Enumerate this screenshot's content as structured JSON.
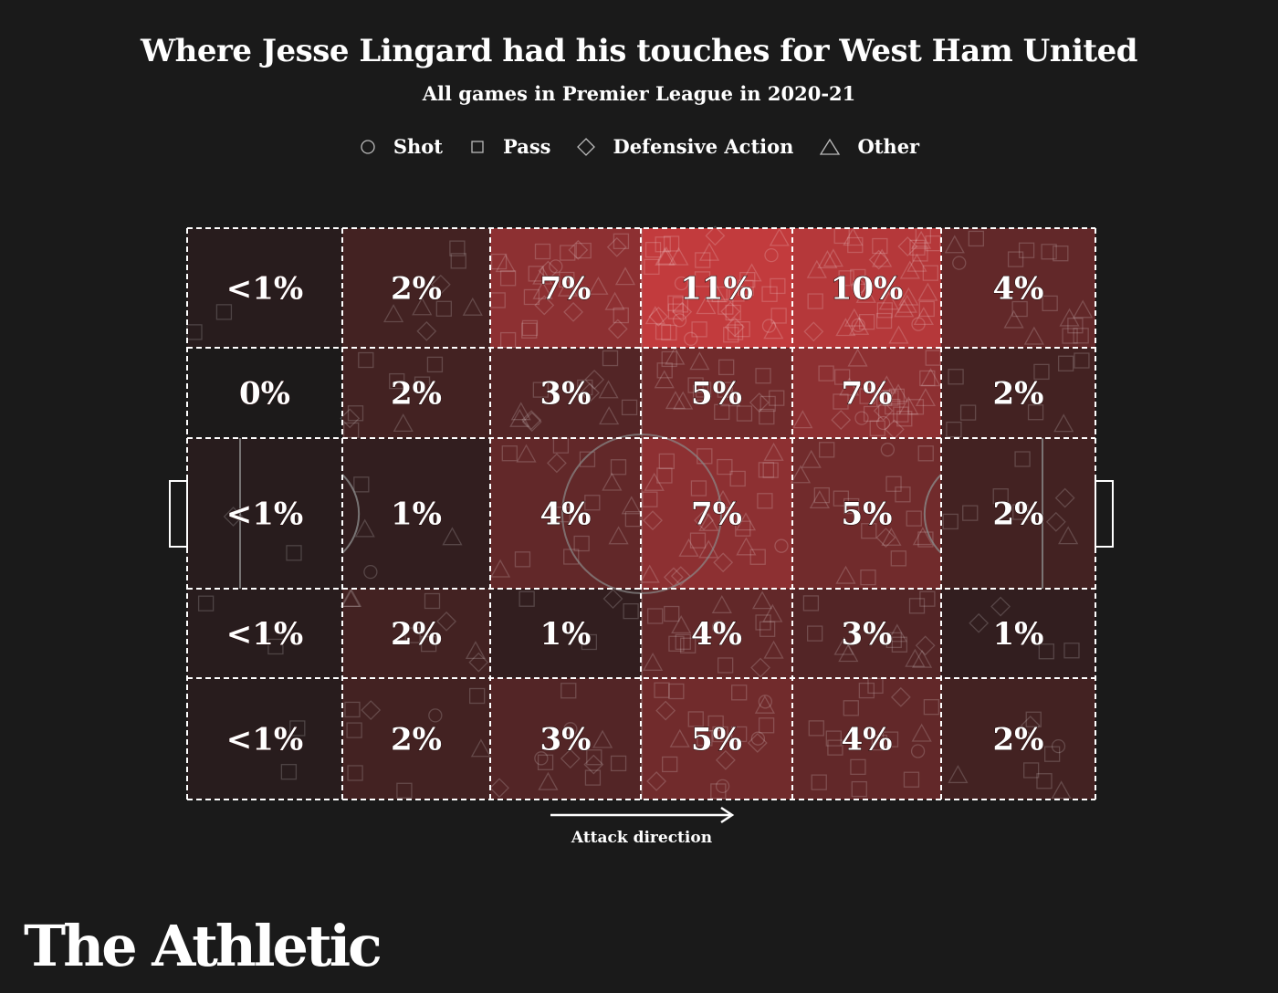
{
  "title": "Where Jesse Lingard had his touches for West Ham United",
  "subtitle": "All games in Premier League in 2020-21",
  "legend": [
    {
      "label": "Shot",
      "icon": "circle-icon"
    },
    {
      "label": "Pass",
      "icon": "square-icon"
    },
    {
      "label": "Defensive Action",
      "icon": "diamond-icon"
    },
    {
      "label": "Other",
      "icon": "triangle-icon"
    }
  ],
  "attack_direction": "Attack direction",
  "brand": "The Athletic",
  "colors": {
    "background": "#1a1a1a",
    "low": "#1c1a1a",
    "high": "#c23b3d"
  },
  "chart_data": {
    "type": "heatmap",
    "title": "Where Jesse Lingard had his touches for West Ham United",
    "subtitle": "All games in Premier League in 2020-21",
    "zones_rows": 5,
    "zones_cols": 6,
    "values_pct": [
      [
        0.5,
        2,
        7,
        11,
        10,
        4
      ],
      [
        0,
        2,
        3,
        5,
        7,
        2
      ],
      [
        0.5,
        1,
        4,
        7,
        5,
        2
      ],
      [
        0.5,
        2,
        1,
        4,
        3,
        1
      ],
      [
        0.5,
        2,
        3,
        5,
        4,
        2
      ]
    ],
    "labels": [
      [
        "<1%",
        "2%",
        "7%",
        "11%",
        "10%",
        "4%"
      ],
      [
        "0%",
        "2%",
        "3%",
        "5%",
        "7%",
        "2%"
      ],
      [
        "<1%",
        "1%",
        "4%",
        "7%",
        "5%",
        "2%"
      ],
      [
        "<1%",
        "2%",
        "1%",
        "4%",
        "3%",
        "1%"
      ],
      [
        "<1%",
        "2%",
        "3%",
        "5%",
        "4%",
        "2%"
      ]
    ],
    "max_value": 11
  }
}
